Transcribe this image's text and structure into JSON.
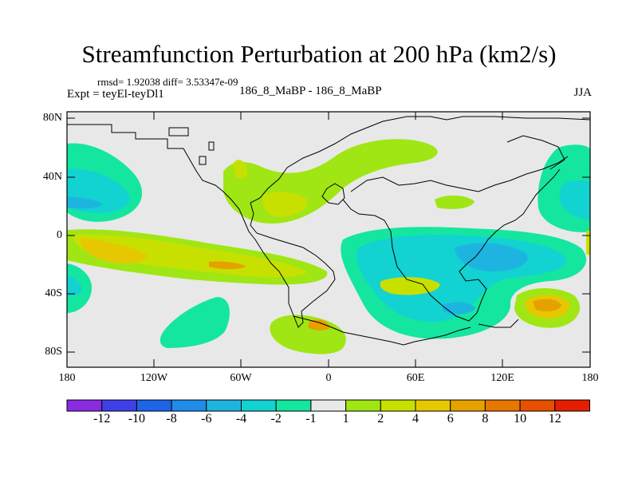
{
  "header": {
    "title": "Streamfunction Perturbation at 200 hPa (km2/s)",
    "stats": "rmsd= 1.92038 diff= 3.53347e-09",
    "expt": "Expt = teyEl-teyDl1",
    "case": "186_8_MaBP - 186_8_MaBP",
    "season": "JJA"
  },
  "axes": {
    "lat_labels": [
      "80N",
      "40N",
      "0",
      "40S",
      "80S"
    ],
    "lon_labels": [
      "180",
      "120W",
      "60W",
      "0",
      "60E",
      "120E",
      "180"
    ]
  },
  "colorbar": {
    "labels": [
      "-12",
      "-10",
      "-8",
      "-6",
      "-4",
      "-2",
      "-1",
      "1",
      "2",
      "4",
      "6",
      "8",
      "10",
      "12"
    ],
    "colors": [
      "#8a2be2",
      "#3f3fe8",
      "#1e64e8",
      "#1e8ce8",
      "#1eb4e0",
      "#12d2d2",
      "#14e6a0",
      "#e8e8e8",
      "#a0e614",
      "#c8e000",
      "#e6c800",
      "#e6a000",
      "#e67800",
      "#e65000",
      "#e61e00"
    ]
  }
}
